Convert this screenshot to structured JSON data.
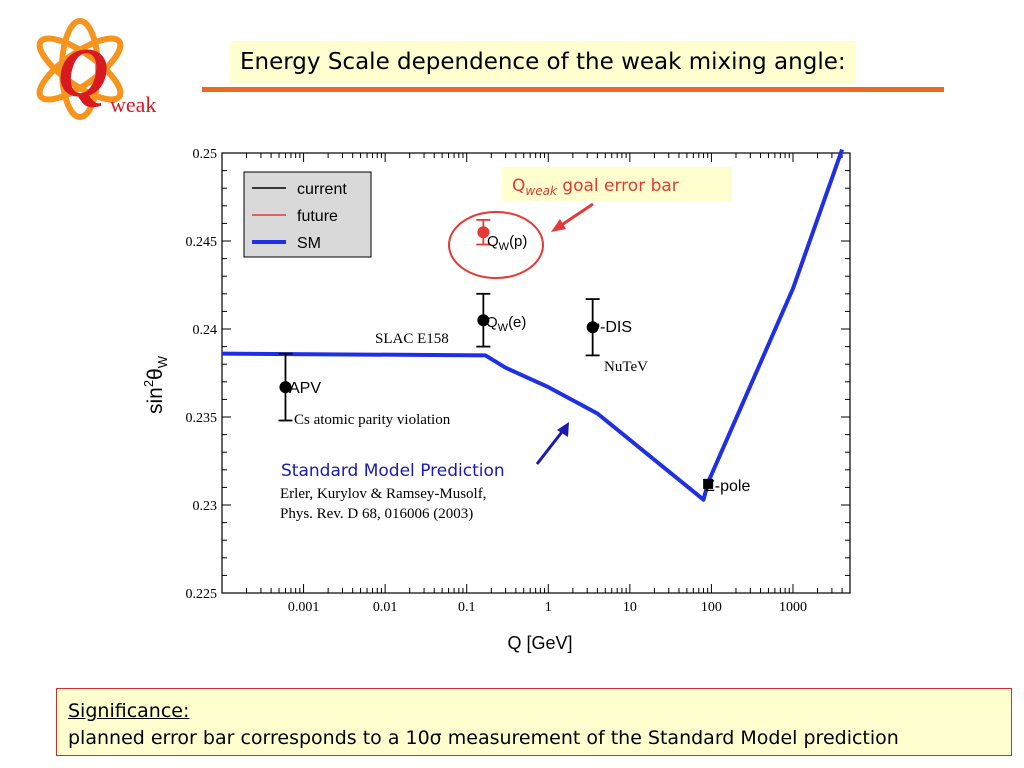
{
  "logo": {
    "letter": "Q",
    "word": "weak"
  },
  "slide": {
    "title": "Energy Scale dependence of the weak mixing angle:",
    "significance_heading": "Significance:",
    "significance_text": "planned error bar corresponds to a 10σ measurement of the Standard Model prediction"
  },
  "colors": {
    "accent": "#f26522",
    "sm_curve": "#1f2fe6",
    "future": "#e53935",
    "box_fill": "#fefecf",
    "annotation_blue": "#1a1ab0"
  },
  "chart_data": {
    "type": "scatter",
    "xscale": "log",
    "xlabel": "Q [GeV]",
    "ylabel_parts": {
      "base": "sin",
      "sup": "2",
      "theta": "θ",
      "sub": "W"
    },
    "xlim": [
      0.0001,
      5000
    ],
    "ylim": [
      0.225,
      0.25
    ],
    "x_ticks": [
      {
        "value": 0.001,
        "label": "0.001"
      },
      {
        "value": 0.01,
        "label": "0.01"
      },
      {
        "value": 0.1,
        "label": "0.1"
      },
      {
        "value": 1,
        "label": "1"
      },
      {
        "value": 10,
        "label": "10"
      },
      {
        "value": 100,
        "label": "100"
      },
      {
        "value": 1000,
        "label": "1000"
      }
    ],
    "y_ticks": [
      {
        "value": 0.225,
        "label": "0.225"
      },
      {
        "value": 0.23,
        "label": "0.23"
      },
      {
        "value": 0.235,
        "label": "0.235"
      },
      {
        "value": 0.24,
        "label": "0.24"
      },
      {
        "value": 0.245,
        "label": "0.245"
      },
      {
        "value": 0.25,
        "label": "0.25"
      }
    ],
    "legend": {
      "position": "top-left",
      "entries": [
        {
          "name": "current",
          "color": "#000000",
          "width": 1.5
        },
        {
          "name": "future",
          "color": "#e53935",
          "width": 1.5
        },
        {
          "name": "SM",
          "color": "#1f2fe6",
          "width": 4
        }
      ]
    },
    "sm_curve": [
      [
        0.0001,
        0.2386
      ],
      [
        0.17,
        0.2385
      ],
      [
        0.3,
        0.2378
      ],
      [
        1,
        0.2367
      ],
      [
        4,
        0.2352
      ],
      [
        80,
        0.2303
      ],
      [
        91.2,
        0.2313
      ],
      [
        1000,
        0.2423
      ],
      [
        4000,
        0.2502
      ]
    ],
    "points": [
      {
        "id": "apv",
        "label": "APV",
        "x": 0.0006,
        "y": 0.2367,
        "err": 0.0019,
        "marker": "circle",
        "color": "#000000",
        "note": "Cs atomic parity violation"
      },
      {
        "id": "qwe",
        "label_main": "Q",
        "label_sub": "W",
        "label_tail": "(e)",
        "x": 0.16,
        "y": 0.2405,
        "err": 0.0015,
        "marker": "circle",
        "color": "#000000",
        "note": "SLAC E158"
      },
      {
        "id": "nudis",
        "label": "ν-DIS",
        "x": 3.5,
        "y": 0.2401,
        "err": 0.0016,
        "marker": "circle",
        "color": "#000000",
        "note": "NuTeV"
      },
      {
        "id": "qwp",
        "label_main": "Q",
        "label_sub": "W",
        "label_tail": "(p)",
        "x": 0.16,
        "y": 0.2455,
        "err": 0.0007,
        "marker": "circle",
        "color": "#e53935"
      },
      {
        "id": "zpole",
        "label": "Z-pole",
        "x": 91.2,
        "y": 0.2312,
        "err": 0,
        "marker": "square",
        "color": "#000000"
      }
    ],
    "annotations": {
      "goal_main": "Q",
      "goal_sub": "weak",
      "goal_tail": " goal error bar",
      "sm_heading": "Standard Model Prediction",
      "sm_ref_line1": "Erler, Kurylov & Ramsey-Musolf,",
      "sm_ref_line2": "Phys. Rev. D 68, 016006 (2003)"
    }
  }
}
